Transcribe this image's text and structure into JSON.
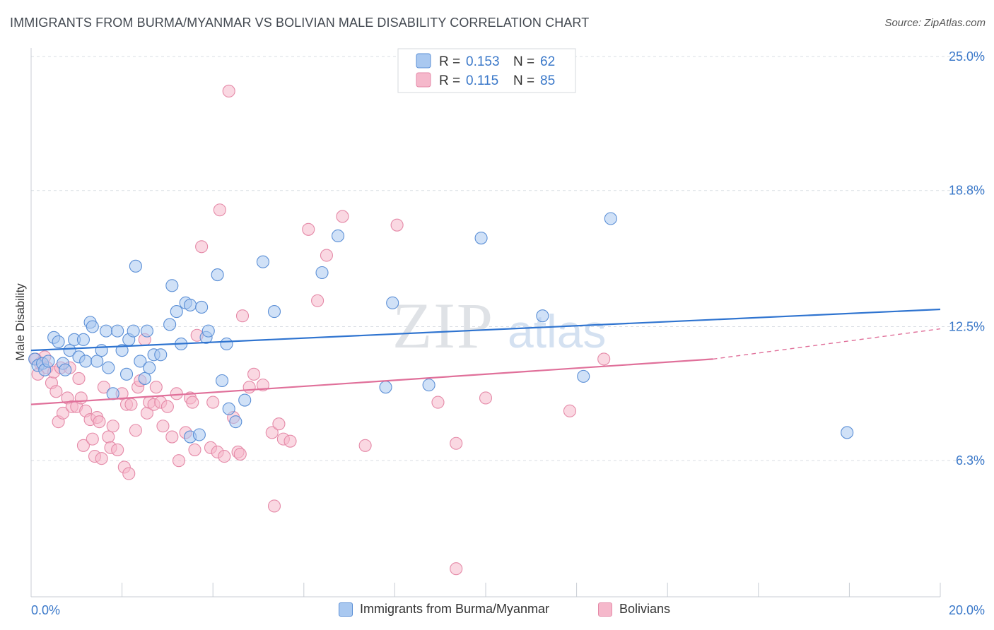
{
  "title": "IMMIGRANTS FROM BURMA/MYANMAR VS BOLIVIAN MALE DISABILITY CORRELATION CHART",
  "source": "Source: ZipAtlas.com",
  "watermark": {
    "zip": "ZIP",
    "atlas": "atlas"
  },
  "legend": {
    "r_label": "R =",
    "n_label": "N =",
    "series": [
      {
        "r": "0.153",
        "n": "62"
      },
      {
        "r": "0.115",
        "n": "85"
      }
    ]
  },
  "bottom_legend": [
    "Immigrants from Burma/Myanmar",
    "Bolivians"
  ],
  "colors": {
    "blue_fill": "#a9c8f0",
    "blue_stroke": "#5b8fd6",
    "blue_line": "#2f74d0",
    "pink_fill": "#f5b8cb",
    "pink_stroke": "#e58aa8",
    "pink_line": "#e0709a",
    "value_text": "#3a78c9",
    "grid": "#d9dde3"
  },
  "chart_data": {
    "type": "scatter",
    "title": "IMMIGRANTS FROM BURMA/MYANMAR VS BOLIVIAN MALE DISABILITY CORRELATION CHART",
    "xlabel": "",
    "ylabel": "Male Disability",
    "xlim": [
      0,
      20
    ],
    "ylim": [
      0,
      25
    ],
    "x_tick_labels": [
      {
        "value": 0,
        "label": "0.0%"
      },
      {
        "value": 20,
        "label": "20.0%"
      }
    ],
    "y_tick_labels": [
      {
        "value": 6.3,
        "label": "6.3%"
      },
      {
        "value": 12.5,
        "label": "12.5%"
      },
      {
        "value": 18.8,
        "label": "18.8%"
      },
      {
        "value": 25.0,
        "label": "25.0%"
      }
    ],
    "series": [
      {
        "name": "Immigrants from Burma/Myanmar",
        "color": "#a9c8f0",
        "r": 0.153,
        "n": 62,
        "trend": {
          "x": [
            0,
            20
          ],
          "y": [
            11.4,
            13.3
          ]
        },
        "points": [
          [
            0.08,
            11.0
          ],
          [
            0.15,
            10.7
          ],
          [
            0.25,
            10.8
          ],
          [
            0.3,
            10.5
          ],
          [
            0.38,
            10.9
          ],
          [
            0.5,
            12.0
          ],
          [
            0.6,
            11.8
          ],
          [
            0.7,
            10.8
          ],
          [
            0.75,
            10.5
          ],
          [
            0.85,
            11.4
          ],
          [
            0.95,
            11.9
          ],
          [
            1.05,
            11.1
          ],
          [
            1.15,
            11.9
          ],
          [
            1.2,
            10.9
          ],
          [
            1.3,
            12.7
          ],
          [
            1.35,
            12.5
          ],
          [
            1.45,
            10.9
          ],
          [
            1.55,
            11.4
          ],
          [
            1.65,
            12.3
          ],
          [
            1.7,
            10.6
          ],
          [
            1.8,
            9.4
          ],
          [
            1.9,
            12.3
          ],
          [
            2.0,
            11.4
          ],
          [
            2.1,
            10.3
          ],
          [
            2.15,
            11.9
          ],
          [
            2.25,
            12.3
          ],
          [
            2.3,
            15.3
          ],
          [
            2.4,
            10.9
          ],
          [
            2.5,
            10.1
          ],
          [
            2.55,
            12.3
          ],
          [
            2.6,
            10.6
          ],
          [
            2.7,
            11.2
          ],
          [
            2.85,
            11.2
          ],
          [
            3.05,
            12.6
          ],
          [
            3.1,
            14.4
          ],
          [
            3.2,
            13.2
          ],
          [
            3.3,
            11.7
          ],
          [
            3.4,
            13.6
          ],
          [
            3.5,
            13.5
          ],
          [
            3.5,
            7.4
          ],
          [
            3.7,
            7.5
          ],
          [
            3.75,
            13.4
          ],
          [
            3.85,
            12.0
          ],
          [
            3.9,
            12.3
          ],
          [
            4.1,
            14.9
          ],
          [
            4.2,
            10.0
          ],
          [
            4.3,
            11.7
          ],
          [
            4.35,
            8.7
          ],
          [
            4.5,
            8.1
          ],
          [
            4.7,
            9.1
          ],
          [
            5.1,
            15.5
          ],
          [
            5.35,
            13.2
          ],
          [
            6.75,
            16.7
          ],
          [
            7.8,
            9.7
          ],
          [
            7.95,
            13.6
          ],
          [
            8.75,
            9.8
          ],
          [
            9.9,
            16.6
          ],
          [
            11.25,
            13.0
          ],
          [
            12.15,
            10.2
          ],
          [
            12.75,
            17.5
          ],
          [
            17.95,
            7.6
          ],
          [
            6.4,
            15.0
          ]
        ]
      },
      {
        "name": "Bolivians",
        "color": "#f5b8cb",
        "r": 0.115,
        "n": 85,
        "trend": {
          "x": [
            0,
            15
          ],
          "y": [
            8.9,
            11.0
          ]
        },
        "trend_extension": {
          "x": [
            15,
            20
          ],
          "y": [
            11.0,
            12.4
          ]
        },
        "points": [
          [
            0.1,
            11.0
          ],
          [
            0.15,
            10.3
          ],
          [
            0.2,
            10.8
          ],
          [
            0.3,
            11.1
          ],
          [
            0.35,
            10.6
          ],
          [
            0.45,
            9.9
          ],
          [
            0.5,
            10.4
          ],
          [
            0.55,
            9.5
          ],
          [
            0.6,
            8.1
          ],
          [
            0.65,
            10.6
          ],
          [
            0.7,
            8.5
          ],
          [
            0.8,
            9.2
          ],
          [
            0.85,
            10.6
          ],
          [
            0.9,
            8.8
          ],
          [
            1.0,
            8.8
          ],
          [
            1.05,
            10.1
          ],
          [
            1.1,
            9.2
          ],
          [
            1.15,
            7.0
          ],
          [
            1.2,
            8.6
          ],
          [
            1.3,
            8.2
          ],
          [
            1.35,
            7.3
          ],
          [
            1.4,
            6.5
          ],
          [
            1.45,
            8.3
          ],
          [
            1.5,
            8.1
          ],
          [
            1.55,
            6.4
          ],
          [
            1.6,
            9.7
          ],
          [
            1.7,
            7.4
          ],
          [
            1.75,
            6.9
          ],
          [
            1.8,
            7.9
          ],
          [
            1.9,
            6.8
          ],
          [
            2.0,
            9.4
          ],
          [
            2.05,
            6.0
          ],
          [
            2.1,
            8.9
          ],
          [
            2.15,
            5.7
          ],
          [
            2.2,
            8.9
          ],
          [
            2.3,
            7.7
          ],
          [
            2.35,
            9.7
          ],
          [
            2.4,
            10.0
          ],
          [
            2.5,
            11.9
          ],
          [
            2.55,
            8.5
          ],
          [
            2.6,
            9.0
          ],
          [
            2.7,
            8.9
          ],
          [
            2.75,
            9.7
          ],
          [
            2.85,
            9.0
          ],
          [
            2.9,
            7.9
          ],
          [
            3.0,
            8.8
          ],
          [
            3.1,
            7.4
          ],
          [
            3.2,
            9.4
          ],
          [
            3.25,
            6.3
          ],
          [
            3.4,
            7.6
          ],
          [
            3.5,
            9.2
          ],
          [
            3.55,
            9.0
          ],
          [
            3.6,
            6.8
          ],
          [
            3.65,
            12.1
          ],
          [
            3.75,
            16.2
          ],
          [
            3.95,
            6.9
          ],
          [
            4.0,
            9.0
          ],
          [
            4.1,
            6.7
          ],
          [
            4.15,
            17.9
          ],
          [
            4.25,
            6.5
          ],
          [
            4.35,
            23.4
          ],
          [
            4.45,
            8.3
          ],
          [
            4.55,
            6.7
          ],
          [
            4.6,
            6.6
          ],
          [
            4.65,
            13.0
          ],
          [
            4.8,
            9.7
          ],
          [
            4.9,
            10.3
          ],
          [
            5.1,
            9.8
          ],
          [
            5.3,
            7.6
          ],
          [
            5.35,
            4.2
          ],
          [
            5.45,
            8.0
          ],
          [
            5.55,
            7.3
          ],
          [
            5.7,
            7.2
          ],
          [
            6.1,
            17.0
          ],
          [
            6.3,
            13.7
          ],
          [
            6.5,
            15.8
          ],
          [
            6.85,
            17.6
          ],
          [
            7.35,
            7.0
          ],
          [
            8.05,
            17.2
          ],
          [
            8.95,
            9.0
          ],
          [
            9.35,
            1.3
          ],
          [
            9.35,
            7.1
          ],
          [
            10.0,
            9.2
          ],
          [
            11.85,
            8.6
          ],
          [
            12.6,
            11.0
          ]
        ]
      }
    ]
  }
}
